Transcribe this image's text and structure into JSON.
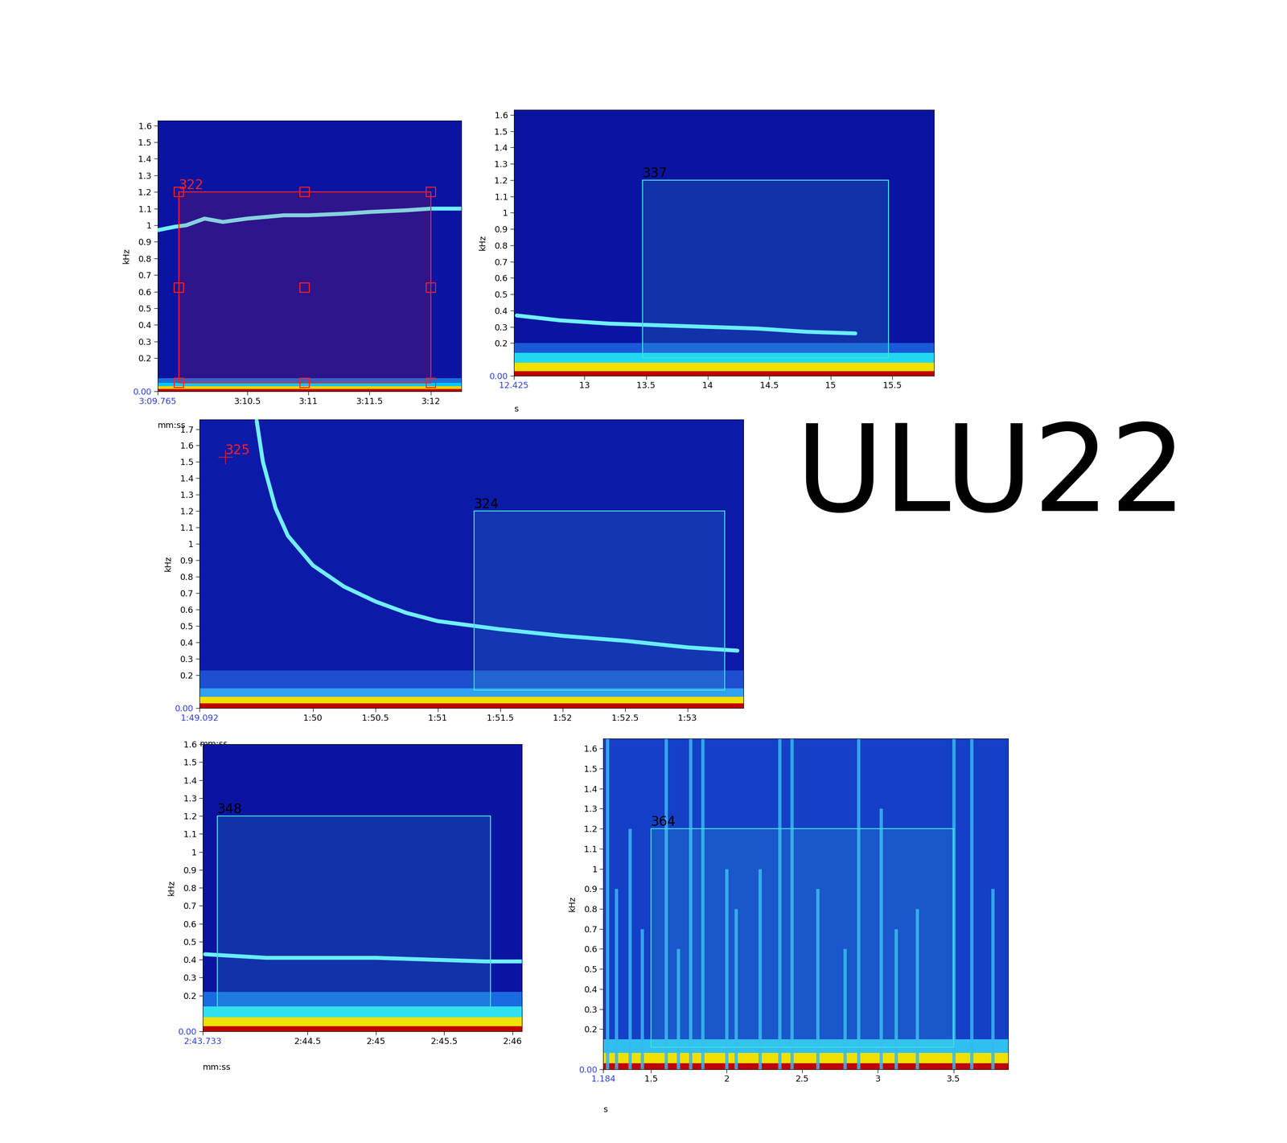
{
  "title": "ULU22",
  "chart_data": [
    {
      "type": "line",
      "xlabel": "mm:ss",
      "ylabel": "kHz",
      "xlim": [
        189.765,
        192.25
      ],
      "ylim": [
        0,
        1.63
      ],
      "xticks": [
        {
          "value": 189.765,
          "label": "3:09.765"
        },
        {
          "value": 190.5,
          "label": "3:10.5"
        },
        {
          "value": 191,
          "label": "3:11"
        },
        {
          "value": 191.5,
          "label": "3:11.5"
        },
        {
          "value": 192,
          "label": "3:12"
        }
      ],
      "yticks": [
        {
          "value": 0,
          "label": "0.00"
        },
        0.2,
        0.3,
        0.4,
        0.5,
        0.6,
        0.7,
        0.8,
        0.9,
        1,
        1.1,
        1.2,
        1.3,
        1.4,
        1.5,
        1.6
      ],
      "noise_floor": [
        {
          "top": 0.08,
          "color": "#1a6ee0"
        },
        {
          "top": 0.05,
          "color": "#00c8ff"
        },
        {
          "top": 0.03,
          "color": "#f0d000"
        },
        {
          "top": 0.015,
          "color": "#c00000"
        }
      ],
      "series": [
        {
          "type": "line",
          "color": "#70f0ff",
          "x": [
            189.765,
            189.9,
            190.0,
            190.15,
            190.3,
            190.5,
            190.8,
            191.0,
            191.3,
            191.5,
            191.8,
            192.0,
            192.25
          ],
          "values": [
            0.97,
            0.99,
            1.0,
            1.04,
            1.02,
            1.04,
            1.06,
            1.06,
            1.07,
            1.08,
            1.09,
            1.1,
            1.1
          ]
        }
      ],
      "selection": {
        "label": "322",
        "x": [
          189.94,
          192.0
        ],
        "y": [
          0.05,
          1.2
        ],
        "color": "#ff2020",
        "marker": "square"
      }
    },
    {
      "type": "line",
      "xlabel": "s",
      "ylabel": "kHz",
      "xlim": [
        12.425,
        15.84
      ],
      "ylim": [
        0,
        1.63
      ],
      "xticks": [
        12.425,
        13,
        13.5,
        14,
        14.5,
        15,
        15.5
      ],
      "yticks": [
        {
          "value": 0,
          "label": "0.00"
        },
        0.2,
        0.3,
        0.4,
        0.5,
        0.6,
        0.7,
        0.8,
        0.9,
        1,
        1.1,
        1.2,
        1.3,
        1.4,
        1.5,
        1.6
      ],
      "noise_floor": [
        {
          "top": 0.2,
          "color": "#1a5ad8"
        },
        {
          "top": 0.14,
          "color": "#20d8f0"
        },
        {
          "top": 0.08,
          "color": "#f0e000"
        },
        {
          "top": 0.03,
          "color": "#c00000"
        }
      ],
      "series": [
        {
          "type": "line",
          "color": "#70f0ff",
          "x": [
            12.45,
            12.8,
            13.2,
            13.6,
            14.0,
            14.4,
            14.8,
            15.2
          ],
          "values": [
            0.37,
            0.34,
            0.32,
            0.31,
            0.3,
            0.29,
            0.27,
            0.26
          ]
        }
      ],
      "selection": {
        "label": "337",
        "x": [
          13.47,
          15.47
        ],
        "y": [
          0.11,
          1.2
        ],
        "color": "#40e0e0"
      }
    },
    {
      "type": "line",
      "xlabel": "mm:ss",
      "ylabel": "kHz",
      "xlim": [
        109.092,
        113.45
      ],
      "ylim": [
        0,
        1.76
      ],
      "xticks": [
        {
          "value": 109.092,
          "label": "1:49.092"
        },
        {
          "value": 110,
          "label": "1:50"
        },
        {
          "value": 110.5,
          "label": "1:50.5"
        },
        {
          "value": 111,
          "label": "1:51"
        },
        {
          "value": 111.5,
          "label": "1:51.5"
        },
        {
          "value": 112,
          "label": "1:52"
        },
        {
          "value": 112.5,
          "label": "1:52.5"
        },
        {
          "value": 113,
          "label": "1:53"
        }
      ],
      "yticks": [
        {
          "value": 0,
          "label": "0.00"
        },
        0.2,
        0.3,
        0.4,
        0.5,
        0.6,
        0.7,
        0.8,
        0.9,
        1,
        1.1,
        1.2,
        1.3,
        1.4,
        1.5,
        1.6,
        1.7
      ],
      "noise_floor": [
        {
          "top": 0.23,
          "color": "#1d4fd0"
        },
        {
          "top": 0.12,
          "color": "#30a0f0"
        },
        {
          "top": 0.07,
          "color": "#f0e000"
        },
        {
          "top": 0.03,
          "color": "#c00000"
        }
      ],
      "series": [
        {
          "type": "line",
          "color": "#70f0ff",
          "x": [
            109.55,
            109.6,
            109.7,
            109.8,
            110.0,
            110.25,
            110.5,
            110.75,
            111.0,
            111.5,
            112.0,
            112.5,
            113.0,
            113.4
          ],
          "values": [
            1.75,
            1.5,
            1.22,
            1.05,
            0.87,
            0.74,
            0.65,
            0.58,
            0.53,
            0.48,
            0.44,
            0.41,
            0.37,
            0.35
          ]
        }
      ],
      "selection": {
        "label": "324",
        "x": [
          111.29,
          113.3
        ],
        "y": [
          0.11,
          1.2
        ],
        "color": "#40e0e0"
      },
      "annotations": [
        {
          "text": "325",
          "x": 109.3,
          "y": 1.53,
          "color": "#ff2020"
        }
      ]
    },
    {
      "type": "line",
      "xlabel": "mm:ss",
      "ylabel": "kHz",
      "xlim": [
        163.733,
        166.07
      ],
      "ylim": [
        0,
        1.6
      ],
      "xticks": [
        {
          "value": 163.733,
          "label": "2:43.733"
        },
        {
          "value": 164.5,
          "label": "2:44.5"
        },
        {
          "value": 165,
          "label": "2:45"
        },
        {
          "value": 165.5,
          "label": "2:45.5"
        },
        {
          "value": 166,
          "label": "2:46"
        }
      ],
      "yticks": [
        {
          "value": 0,
          "label": "0.00"
        },
        0.2,
        0.3,
        0.4,
        0.5,
        0.6,
        0.7,
        0.8,
        0.9,
        1,
        1.1,
        1.2,
        1.3,
        1.4,
        1.5,
        1.6
      ],
      "noise_floor": [
        {
          "top": 0.22,
          "color": "#1a6ae0"
        },
        {
          "top": 0.14,
          "color": "#30e0f0"
        },
        {
          "top": 0.08,
          "color": "#f0e000"
        },
        {
          "top": 0.03,
          "color": "#c00000"
        }
      ],
      "series": [
        {
          "type": "line",
          "color": "#70f0ff",
          "x": [
            163.75,
            164.2,
            164.6,
            165.0,
            165.4,
            165.8,
            166.07
          ],
          "values": [
            0.43,
            0.41,
            0.41,
            0.41,
            0.4,
            0.39,
            0.39
          ]
        }
      ],
      "selection": {
        "label": "348",
        "x": [
          163.84,
          165.84
        ],
        "y": [
          0.13,
          1.2
        ],
        "color": "#40e0e0"
      }
    },
    {
      "type": "line",
      "xlabel": "s",
      "ylabel": "kHz",
      "xlim": [
        1.184,
        3.86
      ],
      "ylim": [
        0,
        1.65
      ],
      "xticks": [
        1.184,
        1.5,
        2,
        2.5,
        3,
        3.5
      ],
      "yticks": [
        {
          "value": 0,
          "label": "0.00"
        },
        0.2,
        0.3,
        0.4,
        0.5,
        0.6,
        0.7,
        0.8,
        0.9,
        1,
        1.1,
        1.2,
        1.3,
        1.4,
        1.5,
        1.6
      ],
      "noise_floor": [
        {
          "top": 0.15,
          "color": "#30c0f0"
        },
        {
          "top": 0.08,
          "color": "#f0e000"
        },
        {
          "top": 0.03,
          "color": "#c00000"
        }
      ],
      "series": [
        {
          "type": "vlines",
          "color": "#38b8f0",
          "x": [
            1.21,
            1.27,
            1.36,
            1.44,
            1.6,
            1.68,
            1.76,
            1.84,
            2.0,
            2.06,
            2.22,
            2.35,
            2.43,
            2.6,
            2.78,
            2.87,
            3.02,
            3.12,
            3.26,
            3.5,
            3.62,
            3.76
          ],
          "values": [
            1.65,
            0.9,
            1.2,
            0.7,
            1.65,
            0.6,
            1.65,
            1.65,
            1.0,
            0.8,
            1.0,
            1.65,
            1.65,
            0.9,
            0.6,
            1.65,
            1.3,
            0.7,
            0.8,
            1.65,
            1.65,
            0.9
          ]
        }
      ],
      "selection": {
        "label": "364",
        "x": [
          1.5,
          3.5
        ],
        "y": [
          0.11,
          1.2
        ],
        "color": "#40e0e0"
      }
    }
  ]
}
